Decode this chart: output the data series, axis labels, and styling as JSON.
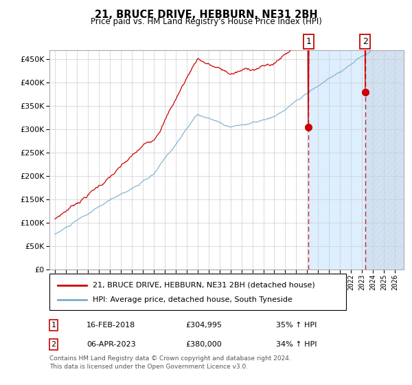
{
  "title": "21, BRUCE DRIVE, HEBBURN, NE31 2BH",
  "subtitle": "Price paid vs. HM Land Registry's House Price Index (HPI)",
  "legend_line1": "21, BRUCE DRIVE, HEBBURN, NE31 2BH (detached house)",
  "legend_line2": "HPI: Average price, detached house, South Tyneside",
  "annotation1_label": "1",
  "annotation1_date": "16-FEB-2018",
  "annotation1_price": "£304,995",
  "annotation1_pct": "35% ↑ HPI",
  "annotation2_label": "2",
  "annotation2_date": "06-APR-2023",
  "annotation2_price": "£380,000",
  "annotation2_pct": "34% ↑ HPI",
  "footer_line1": "Contains HM Land Registry data © Crown copyright and database right 2024.",
  "footer_line2": "This data is licensed under the Open Government Licence v3.0.",
  "red_color": "#cc0000",
  "blue_color": "#7aadcc",
  "bg_fill_color": "#ddeeff",
  "vline_color": "#cc0000",
  "ylim": [
    0,
    470000
  ],
  "yticks": [
    0,
    50000,
    100000,
    150000,
    200000,
    250000,
    300000,
    350000,
    400000,
    450000
  ],
  "sale1_year": 2018.12,
  "sale1_value": 304995,
  "sale2_year": 2023.27,
  "sale2_value": 380000,
  "t_start": 1995.0,
  "t_end": 2026.5,
  "xlim_left": 1994.5,
  "xlim_right": 2026.8
}
